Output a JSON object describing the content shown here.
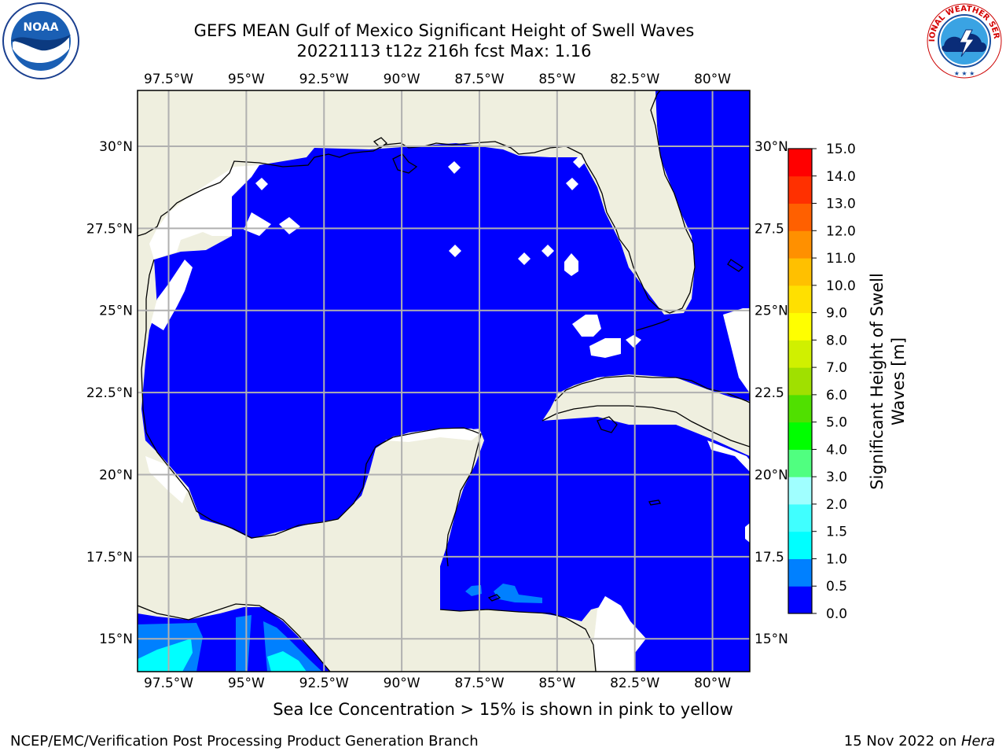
{
  "header": {
    "title_line1": "GEFS MEAN Gulf of Mexico Significant Height of Swell Waves",
    "title_line2": "20221113 t12z 216h fcst   Max: 1.16"
  },
  "logos": {
    "left": {
      "icon": "noaa-logo",
      "text": "NOAA",
      "ring_text": "NATIONAL OCEANIC AND ATMOSPHERIC ADMINISTRATION · U.S. DEPARTMENT OF COMMERCE"
    },
    "right": {
      "icon": "nws-logo",
      "ring_text": "NATIONAL WEATHER SERVICE"
    }
  },
  "map": {
    "projection": "lat-lon",
    "lon_range": [
      -98.5,
      -78.8
    ],
    "lat_range": [
      14.0,
      31.7
    ],
    "grid": true,
    "lon_ticks": [
      {
        "value": -97.5,
        "label": "97.5°W"
      },
      {
        "value": -95.0,
        "label": "95°W"
      },
      {
        "value": -92.5,
        "label": "92.5°W"
      },
      {
        "value": -90.0,
        "label": "90°W"
      },
      {
        "value": -87.5,
        "label": "87.5°W"
      },
      {
        "value": -85.0,
        "label": "85°W"
      },
      {
        "value": -82.5,
        "label": "82.5°W"
      },
      {
        "value": -80.0,
        "label": "80°W"
      }
    ],
    "lat_ticks_left": [
      {
        "value": 30.0,
        "label": "30°N"
      },
      {
        "value": 27.5,
        "label": "27.5°N"
      },
      {
        "value": 25.0,
        "label": "25°N"
      },
      {
        "value": 22.5,
        "label": "22.5°N"
      },
      {
        "value": 20.0,
        "label": "20°N"
      },
      {
        "value": 17.5,
        "label": "17.5°N"
      },
      {
        "value": 15.0,
        "label": "15°N"
      }
    ],
    "lat_ticks_right": [
      {
        "value": 30.0,
        "label": "30°N"
      },
      {
        "value": 27.5,
        "label": "27.5"
      },
      {
        "value": 25.0,
        "label": "25°N"
      },
      {
        "value": 22.5,
        "label": "22.5"
      },
      {
        "value": 20.0,
        "label": "20°N"
      },
      {
        "value": 17.5,
        "label": "17.5"
      },
      {
        "value": 15.0,
        "label": "15°N"
      }
    ],
    "colors": {
      "land": "#efefdf",
      "ocean_fill": "#0000ff",
      "no_data": "#ffffff",
      "grid": "#b0b0b0",
      "coast": "#000000"
    },
    "field_regions": [
      {
        "class": "0.5-1.0",
        "color": "#0080ff",
        "where": "Pacific coast, southwest corner"
      },
      {
        "class": "1.0-1.5",
        "color": "#00ffff",
        "where": "Pacific, near 97°W 14.5°N"
      },
      {
        "class": "0.5-1.0",
        "color": "#0080ff",
        "where": "Caribbean near 85.5°W 16.3°N"
      }
    ]
  },
  "colorbar": {
    "label_line1": "Significant Height of Swell",
    "label_line2": "Waves [m]",
    "min": 0.0,
    "max": 15.0,
    "levels": [
      0.0,
      0.5,
      1.0,
      1.5,
      2.0,
      3.0,
      4.0,
      5.0,
      6.0,
      7.0,
      8.0,
      9.0,
      10.0,
      11.0,
      12.0,
      13.0,
      14.0,
      15.0
    ],
    "tick_labels": [
      "0.0",
      "0.5",
      "1.0",
      "1.5",
      "2.0",
      "3.0",
      "4.0",
      "5.0",
      "6.0",
      "7.0",
      "8.0",
      "9.0",
      "10.0",
      "11.0",
      "12.0",
      "13.0",
      "14.0",
      "15.0"
    ],
    "colors": [
      "#0000ff",
      "#0080ff",
      "#00ffff",
      "#40ffff",
      "#a0ffff",
      "#50ff80",
      "#00ff00",
      "#50e000",
      "#a0e000",
      "#d0f000",
      "#ffff00",
      "#ffe000",
      "#ffc000",
      "#ff9000",
      "#ff6000",
      "#ff3000",
      "#ff0000"
    ]
  },
  "footer": {
    "note": "Sea Ice Concentration > 15% is shown in pink to yellow",
    "credit_left": "NCEP/EMC/Verification Post Processing Product Generation Branch",
    "credit_date": "15 Nov 2022 on ",
    "credit_host": "Hera"
  }
}
